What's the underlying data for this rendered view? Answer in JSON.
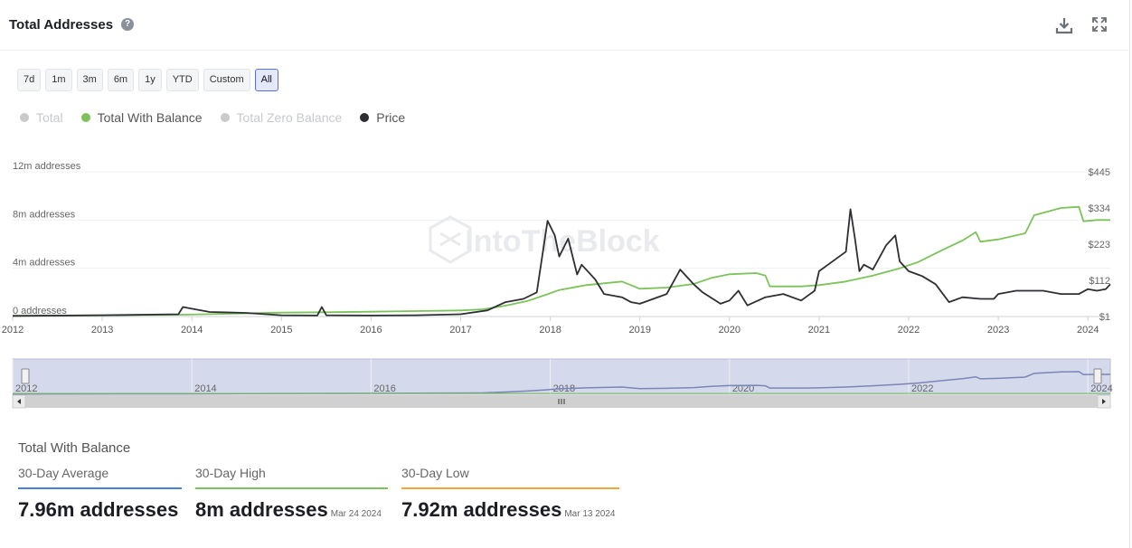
{
  "header": {
    "title": "Total Addresses",
    "help_icon": "question-circle-icon"
  },
  "toolbar": {
    "download_icon": "download-icon",
    "fullscreen_icon": "expand-icon"
  },
  "range_buttons": [
    {
      "label": "7d",
      "active": false
    },
    {
      "label": "1m",
      "active": false
    },
    {
      "label": "3m",
      "active": false
    },
    {
      "label": "6m",
      "active": false
    },
    {
      "label": "1y",
      "active": false
    },
    {
      "label": "YTD",
      "active": false
    },
    {
      "label": "Custom",
      "active": false
    },
    {
      "label": "All",
      "active": true
    }
  ],
  "legend": [
    {
      "label": "Total",
      "color": "#c9cacc",
      "enabled": false
    },
    {
      "label": "Total With Balance",
      "color": "#7cc35b",
      "enabled": true
    },
    {
      "label": "Total Zero Balance",
      "color": "#c9cacc",
      "enabled": false
    },
    {
      "label": "Price",
      "color": "#2e2f33",
      "enabled": true
    }
  ],
  "watermark": "IntoTheBlock",
  "chart_data": {
    "type": "line",
    "grid": true,
    "y_left": {
      "ticks": [
        "12m addresses",
        "8m addresses",
        "4m addresses",
        "0 addresses"
      ],
      "values": [
        12000000,
        8000000,
        4000000,
        0
      ],
      "range": [
        0,
        12000000
      ]
    },
    "y_right": {
      "ticks": [
        "$445",
        "$334",
        "$223",
        "$112",
        "$1"
      ],
      "values": [
        445,
        334,
        223,
        112,
        1
      ],
      "range": [
        1,
        445
      ]
    },
    "x_ticks": [
      "2012",
      "2013",
      "2014",
      "2015",
      "2016",
      "2017",
      "2018",
      "2019",
      "2020",
      "2021",
      "2022",
      "2023",
      "2024"
    ],
    "x_range": [
      2012.0,
      2024.25
    ],
    "series": [
      {
        "name": "Total With Balance",
        "axis": "left",
        "color": "#7cc35b",
        "points": [
          [
            2012.0,
            50000.0
          ],
          [
            2013.0,
            100000.0
          ],
          [
            2013.9,
            150000.0
          ],
          [
            2014.5,
            250000.0
          ],
          [
            2015.0,
            320000.0
          ],
          [
            2015.5,
            350000.0
          ],
          [
            2016.0,
            400000.0
          ],
          [
            2016.5,
            450000.0
          ],
          [
            2017.0,
            500000.0
          ],
          [
            2017.25,
            600000.0
          ],
          [
            2017.5,
            900000.0
          ],
          [
            2017.75,
            1300000.0
          ],
          [
            2017.95,
            1800000.0
          ],
          [
            2018.1,
            2200000.0
          ],
          [
            2018.4,
            2600000.0
          ],
          [
            2018.8,
            2900000.0
          ],
          [
            2019.0,
            2300000.0
          ],
          [
            2019.3,
            2400000.0
          ],
          [
            2019.6,
            2700000.0
          ],
          [
            2019.8,
            3200000.0
          ],
          [
            2020.0,
            3500000.0
          ],
          [
            2020.3,
            3600000.0
          ],
          [
            2020.4,
            3400000.0
          ],
          [
            2020.45,
            2500000.0
          ],
          [
            2020.8,
            2500000.0
          ],
          [
            2021.0,
            2600000.0
          ],
          [
            2021.3,
            2900000.0
          ],
          [
            2021.6,
            3400000.0
          ],
          [
            2021.9,
            4000000.0
          ],
          [
            2022.1,
            4500000.0
          ],
          [
            2022.4,
            5600000.0
          ],
          [
            2022.6,
            6300000.0
          ],
          [
            2022.75,
            7000000.0
          ],
          [
            2022.8,
            6200000.0
          ],
          [
            2023.0,
            6400000.0
          ],
          [
            2023.3,
            6900000.0
          ],
          [
            2023.4,
            8400000.0
          ],
          [
            2023.7,
            9000000.0
          ],
          [
            2023.9,
            9100000.0
          ],
          [
            2023.95,
            7900000.0
          ],
          [
            2024.1,
            8000000.0
          ],
          [
            2024.25,
            8000000.0
          ]
        ]
      },
      {
        "name": "Price",
        "axis": "right",
        "color": "#2e2f33",
        "points": [
          [
            2012.0,
            3
          ],
          [
            2013.0,
            5
          ],
          [
            2013.85,
            8
          ],
          [
            2013.9,
            30
          ],
          [
            2014.0,
            25
          ],
          [
            2014.2,
            15
          ],
          [
            2014.6,
            12
          ],
          [
            2015.0,
            5
          ],
          [
            2015.4,
            4
          ],
          [
            2015.45,
            30
          ],
          [
            2015.5,
            5
          ],
          [
            2016.0,
            4
          ],
          [
            2016.5,
            5
          ],
          [
            2017.0,
            8
          ],
          [
            2017.3,
            20
          ],
          [
            2017.5,
            45
          ],
          [
            2017.7,
            55
          ],
          [
            2017.85,
            75
          ],
          [
            2017.97,
            295
          ],
          [
            2018.05,
            250
          ],
          [
            2018.1,
            185
          ],
          [
            2018.2,
            240
          ],
          [
            2018.3,
            130
          ],
          [
            2018.35,
            160
          ],
          [
            2018.5,
            115
          ],
          [
            2018.6,
            70
          ],
          [
            2018.8,
            60
          ],
          [
            2018.9,
            45
          ],
          [
            2019.0,
            40
          ],
          [
            2019.3,
            70
          ],
          [
            2019.45,
            145
          ],
          [
            2019.6,
            100
          ],
          [
            2019.7,
            75
          ],
          [
            2019.9,
            40
          ],
          [
            2020.0,
            50
          ],
          [
            2020.1,
            80
          ],
          [
            2020.2,
            35
          ],
          [
            2020.4,
            60
          ],
          [
            2020.6,
            70
          ],
          [
            2020.8,
            50
          ],
          [
            2020.95,
            80
          ],
          [
            2021.0,
            140
          ],
          [
            2021.1,
            160
          ],
          [
            2021.3,
            200
          ],
          [
            2021.35,
            330
          ],
          [
            2021.4,
            240
          ],
          [
            2021.45,
            140
          ],
          [
            2021.5,
            160
          ],
          [
            2021.6,
            145
          ],
          [
            2021.75,
            220
          ],
          [
            2021.85,
            250
          ],
          [
            2021.9,
            170
          ],
          [
            2022.0,
            140
          ],
          [
            2022.15,
            125
          ],
          [
            2022.3,
            100
          ],
          [
            2022.45,
            45
          ],
          [
            2022.6,
            60
          ],
          [
            2022.8,
            55
          ],
          [
            2022.95,
            55
          ],
          [
            2023.0,
            70
          ],
          [
            2023.2,
            80
          ],
          [
            2023.5,
            80
          ],
          [
            2023.7,
            70
          ],
          [
            2023.9,
            70
          ],
          [
            2024.0,
            85
          ],
          [
            2024.1,
            80
          ],
          [
            2024.2,
            85
          ],
          [
            2024.25,
            100
          ]
        ]
      }
    ]
  },
  "navigator": {
    "labels": [
      "2012",
      "2014",
      "2016",
      "2018",
      "2020",
      "2022",
      "2024"
    ],
    "label_years": [
      2012,
      2014,
      2016,
      2018,
      2020,
      2022,
      2024
    ]
  },
  "stats": {
    "title": "Total With Balance",
    "items": [
      {
        "label": "30-Day Average",
        "value": "7.96m addresses",
        "date": "",
        "color": "#4a7ee0"
      },
      {
        "label": "30-Day High",
        "value": "8m addresses",
        "date": "Mar 24 2024",
        "color": "#7cc35b"
      },
      {
        "label": "30-Day Low",
        "value": "7.92m addresses",
        "date": "Mar 13 2024",
        "color": "#f0a73a"
      }
    ]
  }
}
